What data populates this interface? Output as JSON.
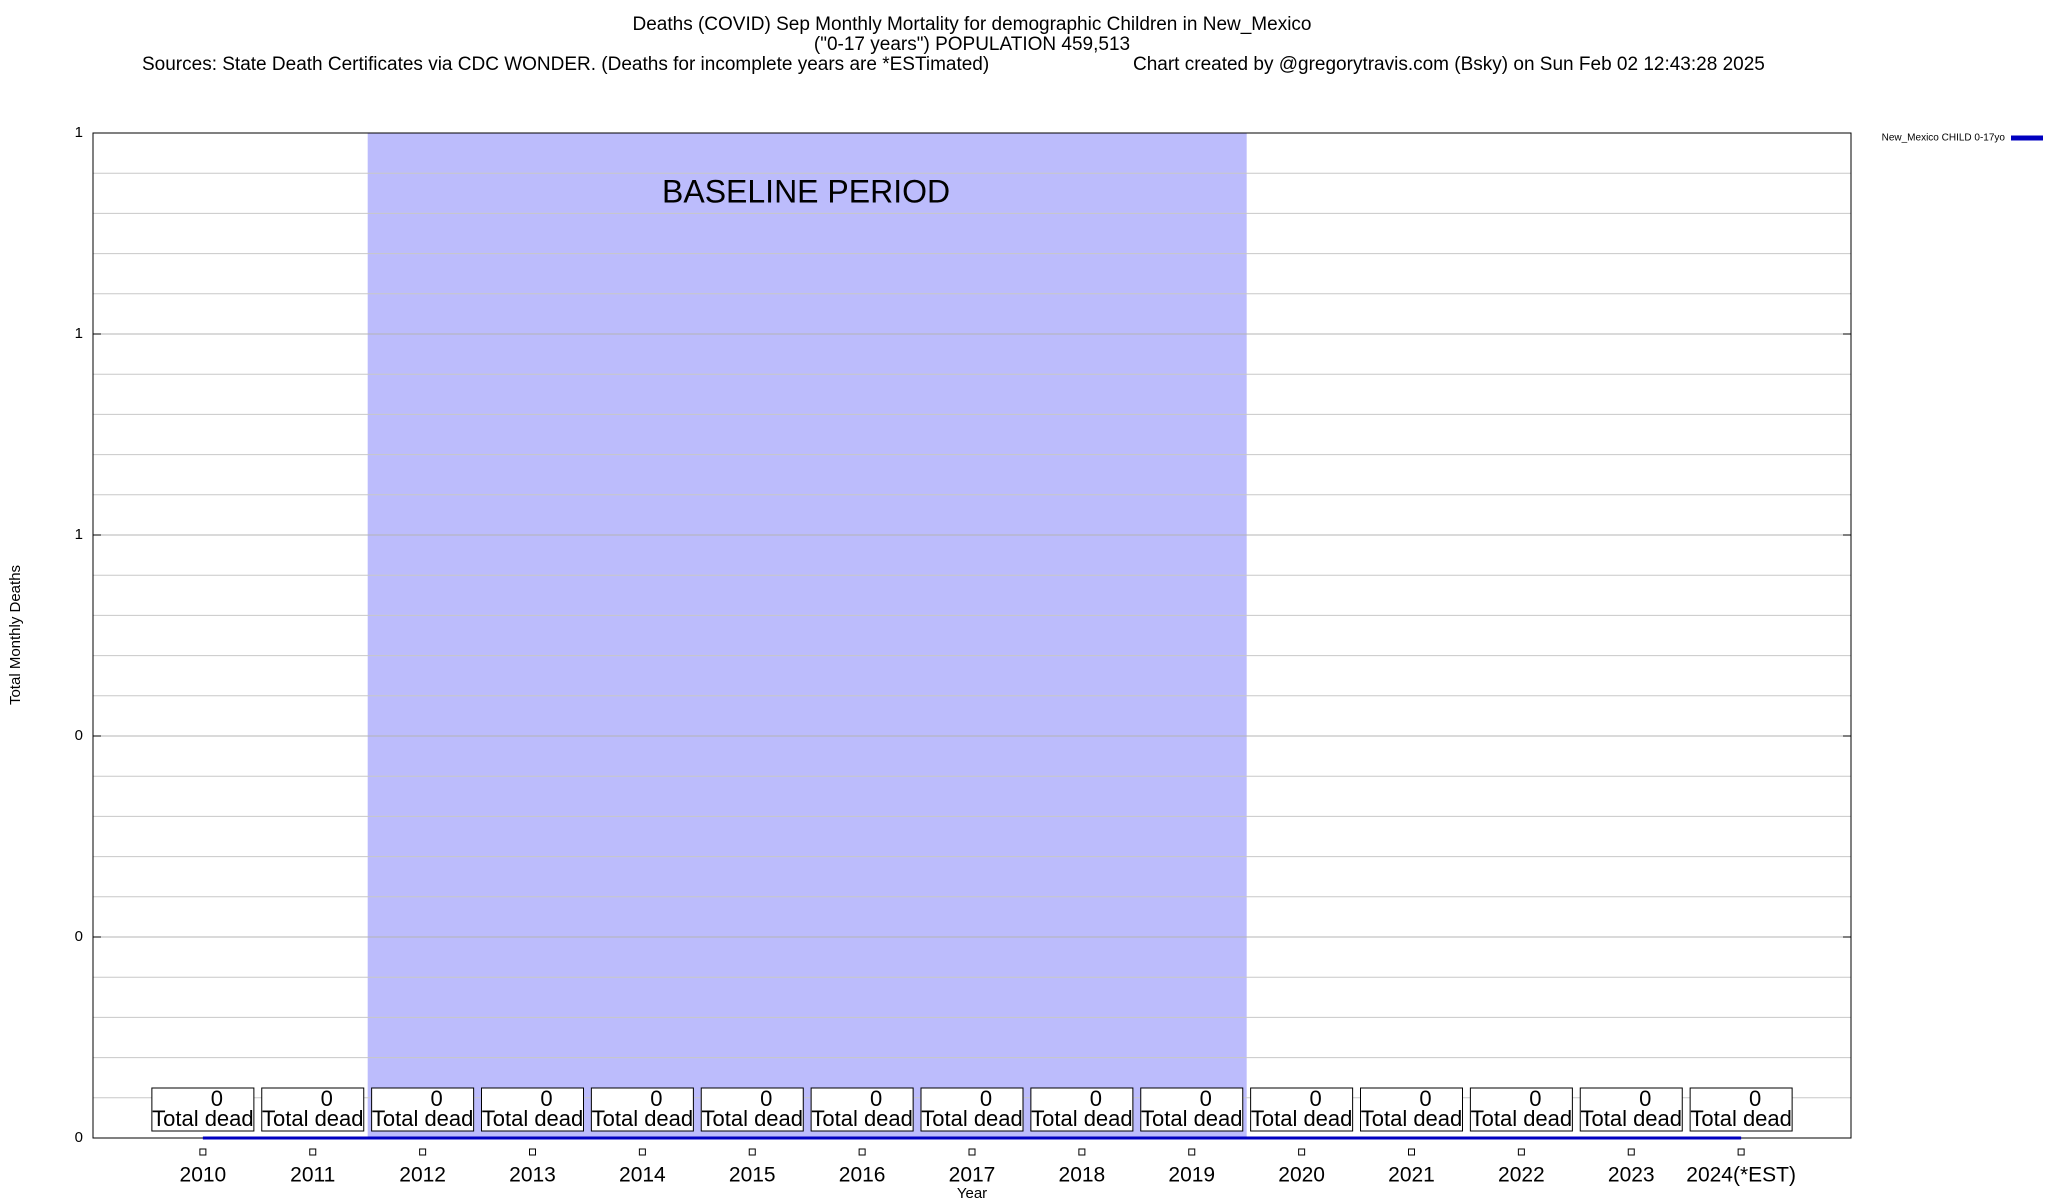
{
  "chart_data": {
    "type": "line",
    "title": "Deaths (COVID) Sep Monthly Mortality for demographic Children in New_Mexico",
    "subtitle": "(\"0-17 years\") POPULATION 459,513",
    "sources": "Sources: State Death Certificates via CDC WONDER. (Deaths for incomplete years are *ESTimated)",
    "credit": "Chart created by @gregorytravis.com (Bsky) on Sun Feb 02 12:43:28 2025",
    "xlabel": "Year",
    "ylabel": "Total Monthly Deaths",
    "categories": [
      "2010",
      "2011",
      "2012",
      "2013",
      "2014",
      "2015",
      "2016",
      "2017",
      "2018",
      "2019",
      "2020",
      "2021",
      "2022",
      "2023",
      "2024(*EST)"
    ],
    "series": [
      {
        "name": "New_Mexico CHILD 0-17yo",
        "color": "#0000c0",
        "values": [
          0,
          0,
          0,
          0,
          0,
          0,
          0,
          0,
          0,
          0,
          0,
          0,
          0,
          0,
          0
        ]
      }
    ],
    "value_label_note": "Total dead",
    "baseline": {
      "label": "BASELINE PERIOD",
      "start": "2012",
      "end": "2019",
      "color": "#bcbcfc"
    },
    "ylim": [
      0,
      1
    ],
    "yticks": [
      0,
      {
        "value": 0.2,
        "label": "0"
      },
      {
        "value": 0.4,
        "label": "0"
      },
      {
        "value": 0.6,
        "label": "1"
      },
      {
        "value": 0.8,
        "label": "1"
      },
      1
    ],
    "minor_yticks": [
      0.04,
      0.08,
      0.12,
      0.16,
      0.24,
      0.28,
      0.32,
      0.36,
      0.44,
      0.48,
      0.52,
      0.56,
      0.64,
      0.68,
      0.72,
      0.76,
      0.84,
      0.88,
      0.92,
      0.96
    ],
    "grid": true,
    "legend": "top-right"
  }
}
